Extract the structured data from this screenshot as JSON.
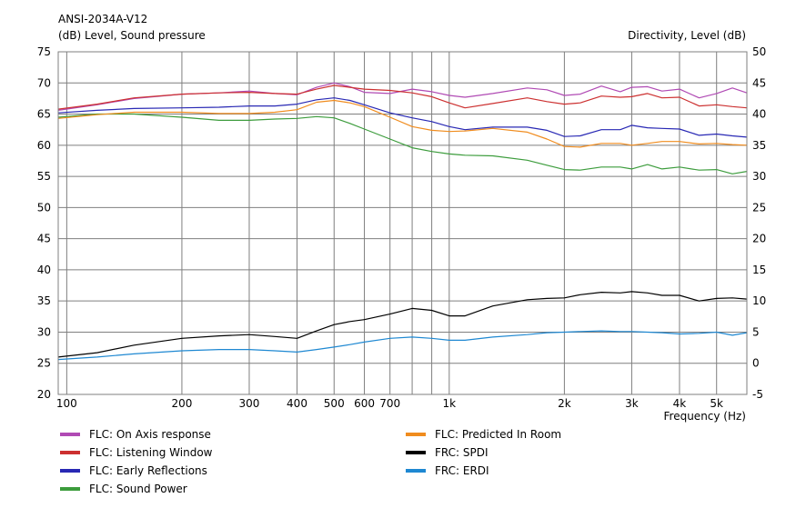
{
  "chart_data": {
    "type": "line",
    "title": "ANSI-2034A-V12",
    "left_axis_label": "(dB)  Level, Sound pressure",
    "right_axis_label": "Directivity, Level  (dB)",
    "x_axis_label": "Frequency  (Hz)",
    "x_scale": "log",
    "xlim": [
      95,
      6000
    ],
    "ylim_left": [
      20,
      75
    ],
    "ylim_right": [
      -5,
      50
    ],
    "grid": true,
    "x_ticks": [
      {
        "value": 100,
        "label": "100"
      },
      {
        "value": 200,
        "label": "200"
      },
      {
        "value": 300,
        "label": "300"
      },
      {
        "value": 400,
        "label": "400"
      },
      {
        "value": 500,
        "label": "500"
      },
      {
        "value": 600,
        "label": "600"
      },
      {
        "value": 700,
        "label": "700"
      },
      {
        "value": 1000,
        "label": "1k"
      },
      {
        "value": 2000,
        "label": "2k"
      },
      {
        "value": 3000,
        "label": "3k"
      },
      {
        "value": 4000,
        "label": "4k"
      },
      {
        "value": 5000,
        "label": "5k"
      }
    ],
    "x_minor_grid": [
      800,
      900
    ],
    "y_ticks_left": [
      75,
      70,
      65,
      60,
      55,
      50,
      45,
      40,
      35,
      30,
      25,
      20
    ],
    "y_ticks_right": [
      50,
      45,
      40,
      35,
      30,
      25,
      20,
      15,
      10,
      5,
      0,
      -5
    ],
    "legend_position": "bottom",
    "series": [
      {
        "name": "FLC: On Axis response",
        "color": "#b04ab4",
        "axis": "left",
        "points": [
          [
            95,
            65.6
          ],
          [
            120,
            66.5
          ],
          [
            150,
            67.5
          ],
          [
            200,
            68.2
          ],
          [
            250,
            68.4
          ],
          [
            300,
            68.7
          ],
          [
            350,
            68.3
          ],
          [
            400,
            68.1
          ],
          [
            450,
            69.3
          ],
          [
            500,
            70.0
          ],
          [
            550,
            69.4
          ],
          [
            600,
            68.5
          ],
          [
            700,
            68.3
          ],
          [
            800,
            69.0
          ],
          [
            900,
            68.6
          ],
          [
            1000,
            68.0
          ],
          [
            1100,
            67.7
          ],
          [
            1300,
            68.3
          ],
          [
            1600,
            69.2
          ],
          [
            1800,
            68.9
          ],
          [
            2000,
            68.0
          ],
          [
            2200,
            68.2
          ],
          [
            2500,
            69.5
          ],
          [
            2800,
            68.6
          ],
          [
            3000,
            69.3
          ],
          [
            3300,
            69.4
          ],
          [
            3600,
            68.7
          ],
          [
            4000,
            69.0
          ],
          [
            4500,
            67.6
          ],
          [
            5000,
            68.3
          ],
          [
            5500,
            69.2
          ],
          [
            6000,
            68.4
          ]
        ]
      },
      {
        "name": "FLC: Listening Window",
        "color": "#cc3030",
        "axis": "left",
        "points": [
          [
            95,
            65.8
          ],
          [
            120,
            66.6
          ],
          [
            150,
            67.6
          ],
          [
            200,
            68.2
          ],
          [
            250,
            68.4
          ],
          [
            300,
            68.5
          ],
          [
            350,
            68.3
          ],
          [
            400,
            68.2
          ],
          [
            450,
            69.0
          ],
          [
            500,
            69.6
          ],
          [
            550,
            69.3
          ],
          [
            600,
            69.0
          ],
          [
            700,
            68.8
          ],
          [
            800,
            68.4
          ],
          [
            900,
            67.8
          ],
          [
            1000,
            66.8
          ],
          [
            1100,
            66.0
          ],
          [
            1300,
            66.7
          ],
          [
            1600,
            67.6
          ],
          [
            1800,
            67.0
          ],
          [
            2000,
            66.6
          ],
          [
            2200,
            66.8
          ],
          [
            2500,
            67.9
          ],
          [
            2800,
            67.7
          ],
          [
            3000,
            67.8
          ],
          [
            3300,
            68.3
          ],
          [
            3600,
            67.6
          ],
          [
            4000,
            67.7
          ],
          [
            4500,
            66.3
          ],
          [
            5000,
            66.5
          ],
          [
            5500,
            66.2
          ],
          [
            6000,
            66.0
          ]
        ]
      },
      {
        "name": "FLC: Early Reflections",
        "color": "#2828b4",
        "axis": "left",
        "points": [
          [
            95,
            65.2
          ],
          [
            120,
            65.6
          ],
          [
            150,
            65.9
          ],
          [
            200,
            66.0
          ],
          [
            250,
            66.1
          ],
          [
            300,
            66.3
          ],
          [
            350,
            66.3
          ],
          [
            400,
            66.6
          ],
          [
            450,
            67.3
          ],
          [
            500,
            67.6
          ],
          [
            550,
            67.2
          ],
          [
            600,
            66.5
          ],
          [
            700,
            65.2
          ],
          [
            800,
            64.4
          ],
          [
            900,
            63.8
          ],
          [
            1000,
            63.0
          ],
          [
            1100,
            62.5
          ],
          [
            1300,
            62.9
          ],
          [
            1600,
            62.9
          ],
          [
            1800,
            62.4
          ],
          [
            2000,
            61.4
          ],
          [
            2200,
            61.5
          ],
          [
            2500,
            62.5
          ],
          [
            2800,
            62.5
          ],
          [
            3000,
            63.2
          ],
          [
            3300,
            62.8
          ],
          [
            3600,
            62.7
          ],
          [
            4000,
            62.6
          ],
          [
            4500,
            61.6
          ],
          [
            5000,
            61.8
          ],
          [
            5500,
            61.5
          ],
          [
            6000,
            61.3
          ]
        ]
      },
      {
        "name": "FLC: Sound Power",
        "color": "#3c9c3c",
        "axis": "left",
        "points": [
          [
            95,
            64.5
          ],
          [
            120,
            65.0
          ],
          [
            150,
            65.0
          ],
          [
            200,
            64.5
          ],
          [
            250,
            64.0
          ],
          [
            300,
            64.0
          ],
          [
            350,
            64.2
          ],
          [
            400,
            64.3
          ],
          [
            450,
            64.6
          ],
          [
            500,
            64.4
          ],
          [
            550,
            63.5
          ],
          [
            600,
            62.6
          ],
          [
            700,
            61.0
          ],
          [
            800,
            59.6
          ],
          [
            900,
            59.0
          ],
          [
            1000,
            58.6
          ],
          [
            1100,
            58.4
          ],
          [
            1300,
            58.3
          ],
          [
            1600,
            57.6
          ],
          [
            1800,
            56.8
          ],
          [
            2000,
            56.1
          ],
          [
            2200,
            56.0
          ],
          [
            2500,
            56.5
          ],
          [
            2800,
            56.5
          ],
          [
            3000,
            56.2
          ],
          [
            3300,
            56.9
          ],
          [
            3600,
            56.2
          ],
          [
            4000,
            56.5
          ],
          [
            4500,
            56.0
          ],
          [
            5000,
            56.1
          ],
          [
            5500,
            55.4
          ],
          [
            6000,
            55.8
          ]
        ]
      },
      {
        "name": "FLC: Predicted In Room",
        "color": "#f08c1e",
        "axis": "left",
        "points": [
          [
            95,
            64.3
          ],
          [
            120,
            64.9
          ],
          [
            150,
            65.3
          ],
          [
            200,
            65.3
          ],
          [
            250,
            65.1
          ],
          [
            300,
            65.1
          ],
          [
            350,
            65.3
          ],
          [
            400,
            65.7
          ],
          [
            450,
            66.9
          ],
          [
            500,
            67.2
          ],
          [
            550,
            66.8
          ],
          [
            600,
            66.2
          ],
          [
            700,
            64.5
          ],
          [
            800,
            63.0
          ],
          [
            900,
            62.4
          ],
          [
            1000,
            62.2
          ],
          [
            1100,
            62.3
          ],
          [
            1300,
            62.7
          ],
          [
            1600,
            62.1
          ],
          [
            1800,
            61.0
          ],
          [
            2000,
            59.8
          ],
          [
            2200,
            59.7
          ],
          [
            2500,
            60.3
          ],
          [
            2800,
            60.3
          ],
          [
            3000,
            60.0
          ],
          [
            3300,
            60.3
          ],
          [
            3600,
            60.6
          ],
          [
            4000,
            60.6
          ],
          [
            4500,
            60.2
          ],
          [
            5000,
            60.3
          ],
          [
            5500,
            60.1
          ],
          [
            6000,
            60.0
          ]
        ]
      },
      {
        "name": "FRC: SPDI",
        "color": "#000000",
        "axis": "right",
        "points": [
          [
            95,
            1.0
          ],
          [
            120,
            1.7
          ],
          [
            150,
            2.9
          ],
          [
            200,
            4.0
          ],
          [
            250,
            4.4
          ],
          [
            300,
            4.6
          ],
          [
            350,
            4.3
          ],
          [
            400,
            4.0
          ],
          [
            450,
            5.2
          ],
          [
            500,
            6.2
          ],
          [
            550,
            6.7
          ],
          [
            600,
            7.0
          ],
          [
            700,
            7.9
          ],
          [
            800,
            8.8
          ],
          [
            900,
            8.5
          ],
          [
            1000,
            7.6
          ],
          [
            1100,
            7.6
          ],
          [
            1300,
            9.2
          ],
          [
            1600,
            10.2
          ],
          [
            1800,
            10.4
          ],
          [
            2000,
            10.5
          ],
          [
            2200,
            11.0
          ],
          [
            2500,
            11.4
          ],
          [
            2800,
            11.3
          ],
          [
            3000,
            11.5
          ],
          [
            3300,
            11.3
          ],
          [
            3600,
            10.9
          ],
          [
            4000,
            10.9
          ],
          [
            4500,
            10.0
          ],
          [
            5000,
            10.4
          ],
          [
            5500,
            10.5
          ],
          [
            6000,
            10.3
          ]
        ]
      },
      {
        "name": "FRC: ERDI",
        "color": "#1e88d2",
        "axis": "right",
        "points": [
          [
            95,
            0.6
          ],
          [
            120,
            1.0
          ],
          [
            150,
            1.5
          ],
          [
            200,
            2.0
          ],
          [
            250,
            2.2
          ],
          [
            300,
            2.2
          ],
          [
            350,
            2.0
          ],
          [
            400,
            1.8
          ],
          [
            450,
            2.2
          ],
          [
            500,
            2.6
          ],
          [
            550,
            3.0
          ],
          [
            600,
            3.4
          ],
          [
            700,
            4.0
          ],
          [
            800,
            4.2
          ],
          [
            900,
            4.0
          ],
          [
            1000,
            3.7
          ],
          [
            1100,
            3.7
          ],
          [
            1300,
            4.2
          ],
          [
            1600,
            4.6
          ],
          [
            1800,
            4.9
          ],
          [
            2000,
            5.0
          ],
          [
            2200,
            5.1
          ],
          [
            2500,
            5.2
          ],
          [
            2800,
            5.1
          ],
          [
            3000,
            5.1
          ],
          [
            3300,
            5.0
          ],
          [
            3600,
            4.9
          ],
          [
            4000,
            4.7
          ],
          [
            4500,
            4.8
          ],
          [
            5000,
            5.0
          ],
          [
            5500,
            4.5
          ],
          [
            6000,
            4.9
          ]
        ]
      }
    ]
  }
}
